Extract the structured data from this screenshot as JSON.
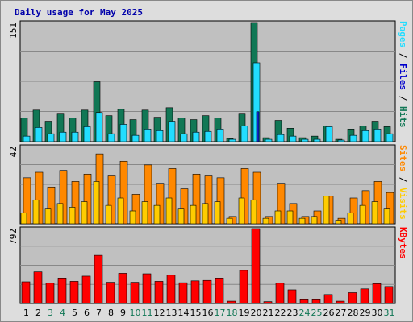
{
  "chart_data": {
    "type": "bar",
    "title": "Daily usage for May 2025",
    "categories": [
      "1",
      "2",
      "3",
      "4",
      "5",
      "6",
      "7",
      "8",
      "9",
      "10",
      "11",
      "12",
      "13",
      "14",
      "15",
      "16",
      "17",
      "18",
      "19",
      "20",
      "21",
      "22",
      "23",
      "24",
      "25",
      "26",
      "27",
      "28",
      "29",
      "30",
      "31"
    ],
    "weekend_days": [
      "3",
      "4",
      "10",
      "11",
      "17",
      "18",
      "24",
      "25",
      "31"
    ],
    "colors": {
      "pages": "#117755",
      "files": "#22ddff",
      "hits": "#117755",
      "visits": "#ff8800",
      "sites": "#ffcc00",
      "kbytes": "#ff0000",
      "weekday_label": "#000000",
      "weekend_label": "#117755",
      "plot_bg": "#c0c0c0",
      "frame_bg": "#dddddd",
      "grid": "#888888"
    },
    "panels": [
      {
        "id": "hits",
        "ymax_label": "151",
        "ylim": [
          0,
          151
        ],
        "legend": [
          {
            "text": "Pages",
            "color": "#22ddff"
          },
          {
            "text": " / ",
            "color": "#000000"
          },
          {
            "text": "Files",
            "color": "#0000cc"
          },
          {
            "text": " / ",
            "color": "#000000"
          },
          {
            "text": "Hits",
            "color": "#117755"
          }
        ],
        "series": [
          {
            "key": "hits",
            "color": "#117755",
            "values": [
              30,
              40,
              26,
              36,
              30,
              40,
              76,
              33,
              41,
              28,
              40,
              31,
              43,
              30,
              28,
              33,
              30,
              4,
              36,
              151,
              5,
              27,
              17,
              5,
              7,
              20,
              3,
              16,
              20,
              26,
              19
            ]
          },
          {
            "key": "files",
            "color": "#22ddff",
            "values": [
              7,
              18,
              10,
              12,
              12,
              19,
              37,
              10,
              22,
              8,
              16,
              14,
              26,
              10,
              12,
              13,
              16,
              3,
              20,
              100,
              3,
              9,
              7,
              3,
              3,
              19,
              2,
              8,
              14,
              16,
              10
            ]
          },
          {
            "key": "pages",
            "color": "#1122cc",
            "values": [
              0,
              0,
              0,
              0,
              0,
              0,
              0,
              0,
              0,
              0,
              0,
              0,
              0,
              0,
              0,
              0,
              0,
              0,
              0,
              38,
              0,
              0,
              0,
              0,
              0,
              0,
              0,
              0,
              0,
              0,
              0
            ]
          }
        ]
      },
      {
        "id": "visits",
        "ymax_label": "42",
        "ylim": [
          0,
          42
        ],
        "legend": [
          {
            "text": "Sites",
            "color": "#ff8800"
          },
          {
            "text": " / ",
            "color": "#000000"
          },
          {
            "text": "Visits",
            "color": "#ffcc00"
          }
        ],
        "series": [
          {
            "key": "visits",
            "color": "#ff8800",
            "values": [
              25,
              28,
              20,
              29,
              23,
              27,
              38,
              26,
              34,
              16,
              32,
              22,
              30,
              19,
              27,
              26,
              25,
              4,
              30,
              28,
              4,
              22,
              11,
              4,
              7,
              15,
              3,
              14,
              18,
              23,
              17
            ]
          },
          {
            "key": "sites",
            "color": "#ffcc00",
            "values": [
              6,
              13,
              8,
              11,
              9,
              12,
              23,
              10,
              14,
              7,
              12,
              10,
              14,
              8,
              10,
              11,
              12,
              3,
              14,
              13,
              3,
              7,
              7,
              3,
              4,
              15,
              2,
              6,
              10,
              12,
              8
            ]
          }
        ]
      },
      {
        "id": "kbytes",
        "ymax_label": "792",
        "ylim": [
          0,
          792
        ],
        "legend": [
          {
            "text": "KBytes",
            "color": "#ff0000"
          }
        ],
        "series": [
          {
            "key": "kbytes",
            "color": "#ff0000",
            "values": [
              230,
              335,
              215,
              270,
              235,
              290,
              510,
              225,
              320,
              225,
              315,
              235,
              300,
              220,
              240,
              245,
              270,
              25,
              350,
              792,
              20,
              215,
              145,
              40,
              40,
              95,
              25,
              115,
              155,
              210,
              180
            ]
          }
        ]
      }
    ]
  }
}
